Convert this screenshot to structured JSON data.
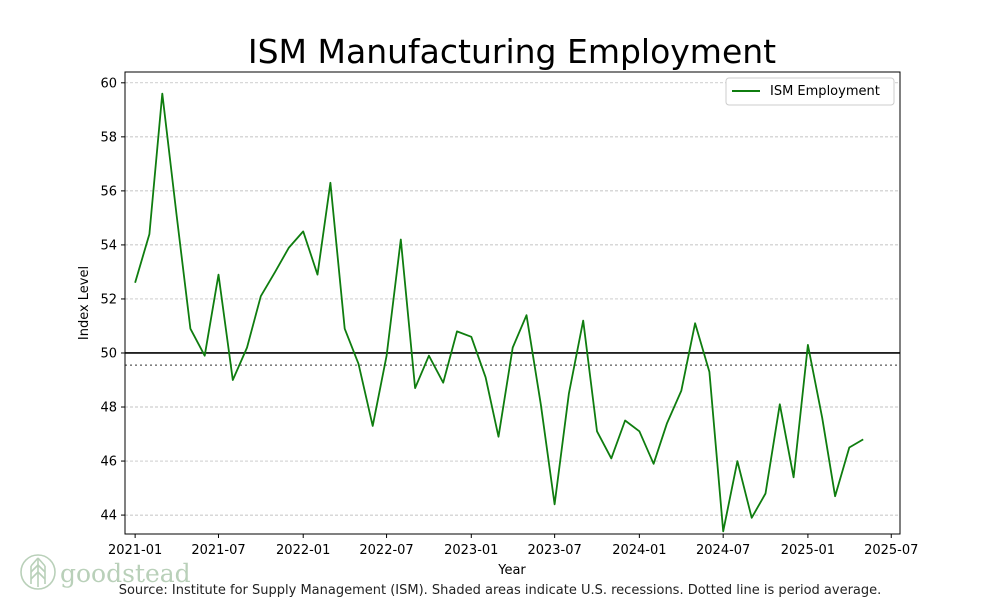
{
  "colors": {
    "series": "#0f7d0f",
    "threshold": "#000000",
    "average": "#808080",
    "grid": "#b0b0b0",
    "logo": "#b9d0b9"
  },
  "source_text": "Source:  Institute for Supply Management (ISM). Shaded areas indicate U.S. recessions. Dotted line is period average.",
  "logo": {
    "text": "goodstead",
    "icon": "tree-icon"
  },
  "chart_data": {
    "type": "line",
    "title": "ISM Manufacturing Employment",
    "xlabel": "Year",
    "ylabel": "Index Level",
    "ylim": [
      43.3,
      60.4
    ],
    "xlim": [
      "2020-12-10",
      "2025-07-20"
    ],
    "yticks": [
      44,
      46,
      48,
      50,
      52,
      54,
      56,
      58,
      60
    ],
    "xticks": [
      "2021-01",
      "2021-07",
      "2022-01",
      "2022-07",
      "2023-01",
      "2023-07",
      "2024-01",
      "2024-07",
      "2025-01",
      "2025-07"
    ],
    "grid": "horizontal dashed",
    "legend": {
      "entries": [
        "ISM Employment"
      ],
      "position": "top-right"
    },
    "reference_lines": [
      {
        "name": "threshold",
        "value": 50,
        "style": "solid"
      },
      {
        "name": "period-average",
        "value": 49.55,
        "style": "dotted"
      }
    ],
    "series": [
      {
        "name": "ISM Employment",
        "x": [
          "2021-01",
          "2021-02",
          "2021-03",
          "2021-04",
          "2021-05",
          "2021-06",
          "2021-07",
          "2021-08",
          "2021-09",
          "2021-10",
          "2021-11",
          "2021-12",
          "2022-01",
          "2022-02",
          "2022-03",
          "2022-04",
          "2022-05",
          "2022-06",
          "2022-07",
          "2022-08",
          "2022-09",
          "2022-10",
          "2022-11",
          "2022-12",
          "2023-01",
          "2023-02",
          "2023-03",
          "2023-04",
          "2023-05",
          "2023-06",
          "2023-07",
          "2023-08",
          "2023-09",
          "2023-10",
          "2023-11",
          "2023-12",
          "2024-01",
          "2024-02",
          "2024-03",
          "2024-04",
          "2024-05",
          "2024-06",
          "2024-07",
          "2024-08",
          "2024-09",
          "2024-10",
          "2024-11",
          "2024-12",
          "2025-01",
          "2025-02",
          "2025-03",
          "2025-04",
          "2025-05"
        ],
        "values": [
          52.6,
          54.4,
          59.6,
          55.1,
          50.9,
          49.9,
          52.9,
          49.0,
          50.2,
          52.1,
          53.0,
          53.9,
          54.5,
          52.9,
          56.3,
          50.9,
          49.6,
          47.3,
          49.9,
          54.2,
          48.7,
          49.9,
          48.9,
          50.8,
          50.6,
          49.1,
          46.9,
          50.2,
          51.4,
          48.1,
          44.4,
          48.5,
          51.2,
          47.1,
          46.1,
          47.5,
          47.1,
          45.9,
          47.4,
          48.6,
          51.1,
          49.3,
          43.4,
          46.0,
          43.9,
          44.8,
          48.1,
          45.4,
          50.3,
          47.6,
          44.7,
          46.5,
          46.8
        ]
      }
    ]
  }
}
